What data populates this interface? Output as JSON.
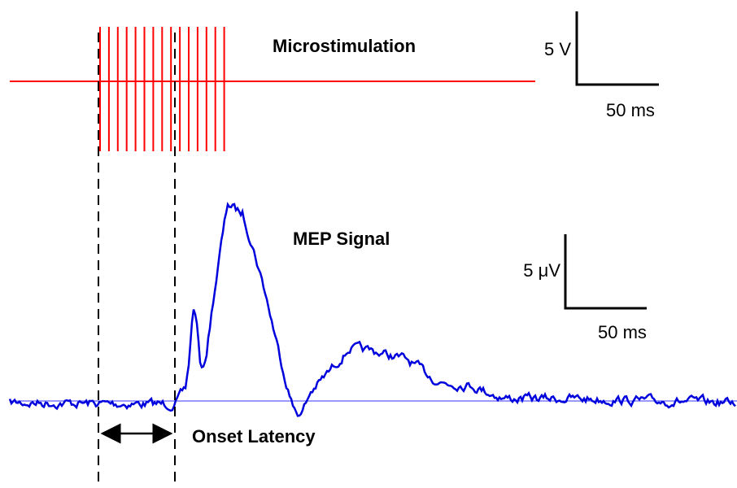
{
  "stimulus": {
    "title": "Microstimulation",
    "scale_y": "5 V",
    "scale_x": "50 ms"
  },
  "response": {
    "title": "MEP Signal",
    "scale_y": "5 μV",
    "scale_x": "50 ms"
  },
  "annotation": "Onset Latency"
}
